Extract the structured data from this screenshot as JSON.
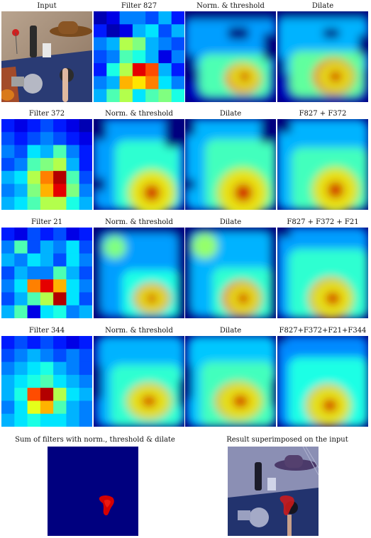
{
  "rows": [
    {
      "cells": [
        {
          "caption": "Input",
          "kind": "photo"
        },
        {
          "caption": "Filter 827",
          "kind": "grid",
          "grid": [
            [
              0.05,
              0.1,
              0.25,
              0.25,
              0.2,
              0.3,
              0.15
            ],
            [
              0.15,
              0.05,
              0.1,
              0.3,
              0.35,
              0.2,
              0.3
            ],
            [
              0.25,
              0.3,
              0.55,
              0.5,
              0.3,
              0.25,
              0.2
            ],
            [
              0.2,
              0.25,
              0.45,
              0.4,
              0.3,
              0.1,
              0.25
            ],
            [
              0.15,
              0.4,
              0.55,
              0.9,
              0.8,
              0.3,
              0.15
            ],
            [
              0.25,
              0.3,
              0.7,
              0.65,
              0.75,
              0.35,
              0.25
            ],
            [
              0.3,
              0.45,
              0.55,
              0.35,
              0.45,
              0.5,
              0.4
            ]
          ]
        },
        {
          "caption": "Norm. & threshold",
          "kind": "heat",
          "preset": "n827"
        },
        {
          "caption": "Dilate",
          "kind": "heat",
          "preset": "d827"
        }
      ]
    },
    {
      "cells": [
        {
          "caption": "Filter 372",
          "kind": "grid",
          "grid": [
            [
              0.15,
              0.1,
              0.15,
              0.2,
              0.15,
              0.1,
              0.05
            ],
            [
              0.2,
              0.15,
              0.2,
              0.25,
              0.2,
              0.15,
              0.1
            ],
            [
              0.25,
              0.2,
              0.35,
              0.3,
              0.45,
              0.25,
              0.15
            ],
            [
              0.2,
              0.25,
              0.45,
              0.5,
              0.55,
              0.3,
              0.15
            ],
            [
              0.3,
              0.35,
              0.55,
              0.75,
              0.95,
              0.45,
              0.2
            ],
            [
              0.25,
              0.3,
              0.5,
              0.7,
              0.9,
              0.5,
              0.25
            ],
            [
              0.3,
              0.35,
              0.45,
              0.55,
              0.55,
              0.4,
              0.3
            ]
          ]
        },
        {
          "caption": "Norm. & threshold",
          "kind": "heat",
          "preset": "n372"
        },
        {
          "caption": "Dilate",
          "kind": "heat",
          "preset": "d372"
        },
        {
          "caption": "F827 + F372",
          "kind": "heat",
          "preset": "s2"
        }
      ]
    },
    {
      "cells": [
        {
          "caption": "Filter 21",
          "kind": "grid",
          "grid": [
            [
              0.15,
              0.1,
              0.2,
              0.15,
              0.2,
              0.1,
              0.15
            ],
            [
              0.25,
              0.45,
              0.2,
              0.3,
              0.25,
              0.35,
              0.2
            ],
            [
              0.3,
              0.25,
              0.35,
              0.3,
              0.2,
              0.35,
              0.25
            ],
            [
              0.2,
              0.3,
              0.25,
              0.25,
              0.45,
              0.3,
              0.2
            ],
            [
              0.25,
              0.35,
              0.75,
              0.9,
              0.7,
              0.35,
              0.25
            ],
            [
              0.2,
              0.3,
              0.45,
              0.55,
              0.95,
              0.35,
              0.2
            ],
            [
              0.3,
              0.45,
              0.1,
              0.35,
              0.4,
              0.25,
              0.3
            ]
          ]
        },
        {
          "caption": "Norm. & threshold",
          "kind": "heat",
          "preset": "n21"
        },
        {
          "caption": "Dilate",
          "kind": "heat",
          "preset": "d21"
        },
        {
          "caption": "F827 + F372 + F21",
          "kind": "heat",
          "preset": "s3"
        }
      ]
    },
    {
      "cells": [
        {
          "caption": "Filter 344",
          "kind": "grid",
          "grid": [
            [
              0.15,
              0.2,
              0.15,
              0.2,
              0.15,
              0.1,
              0.15
            ],
            [
              0.2,
              0.25,
              0.3,
              0.25,
              0.2,
              0.25,
              0.2
            ],
            [
              0.25,
              0.3,
              0.35,
              0.4,
              0.3,
              0.25,
              0.2
            ],
            [
              0.3,
              0.35,
              0.4,
              0.45,
              0.35,
              0.3,
              0.25
            ],
            [
              0.3,
              0.4,
              0.8,
              0.95,
              0.55,
              0.35,
              0.3
            ],
            [
              0.25,
              0.35,
              0.6,
              0.7,
              0.45,
              0.3,
              0.25
            ],
            [
              0.3,
              0.35,
              0.4,
              0.35,
              0.35,
              0.3,
              0.25
            ]
          ]
        },
        {
          "caption": "Norm. & threshold",
          "kind": "heat",
          "preset": "n344"
        },
        {
          "caption": "Dilate",
          "kind": "heat",
          "preset": "d344"
        },
        {
          "caption": "F827+F372+F21+F344",
          "kind": "heat",
          "preset": "s4"
        }
      ]
    }
  ],
  "bottom": [
    {
      "caption": "Sum of filters with norm., threshold & dilate",
      "kind": "mask"
    },
    {
      "caption": "Result superimposed on the input",
      "kind": "overlay"
    }
  ],
  "colors": {
    "jet_low": "#00007f",
    "mask_bg": "#00007f",
    "mask_blob": "#d40000"
  }
}
